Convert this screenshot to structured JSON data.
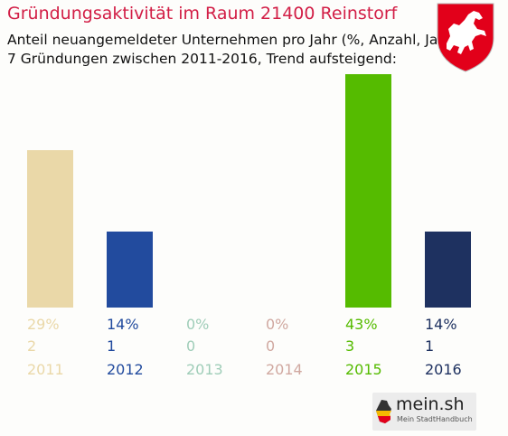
{
  "header": {
    "title": "Gründungsaktivität im Raum 21400 Reinstorf",
    "subtitle_line1": "Anteil neuangemeldeter Unternehmen pro Jahr (%, Anzahl, Jahr)",
    "subtitle_line2": "7 Gründungen zwischen 2011-2016, Trend aufsteigend:"
  },
  "branding": {
    "site": "mein.sh",
    "tagline": "Mein StadtHandbuch",
    "crest_icon": "lower-saxony-horse-crest-icon"
  },
  "colors": {
    "title": "#d21e46"
  },
  "chart_data": {
    "type": "bar",
    "categories": [
      "2011",
      "2012",
      "2013",
      "2014",
      "2015",
      "2016"
    ],
    "values": [
      29,
      14,
      0,
      0,
      43,
      14
    ],
    "percent_labels": [
      "29%",
      "14%",
      "0%",
      "0%",
      "43%",
      "14%"
    ],
    "counts": [
      "2",
      "1",
      "0",
      "0",
      "3",
      "1"
    ],
    "colors": [
      "#ead8a8",
      "#224b9e",
      "#9fcdb8",
      "#d0a8a0",
      "#55bb00",
      "#1e3160"
    ],
    "ylim": [
      0,
      43
    ],
    "grid": false,
    "legend": "none"
  }
}
